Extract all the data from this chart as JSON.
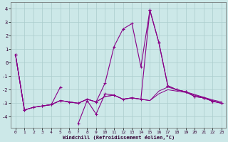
{
  "xlabel": "Windchill (Refroidissement éolien,°C)",
  "bg_color": "#cce8e8",
  "grid_color": "#aacccc",
  "line_color": "#880088",
  "x_values": [
    0,
    1,
    2,
    3,
    4,
    5,
    6,
    7,
    8,
    9,
    10,
    11,
    12,
    13,
    14,
    15,
    16,
    17,
    18,
    19,
    20,
    21,
    22,
    23
  ],
  "series_main": [
    0.6,
    -3.5,
    -3.3,
    -3.2,
    -3.1,
    -2.8,
    -2.9,
    -3.0,
    -2.7,
    -2.9,
    -1.5,
    1.2,
    2.5,
    2.9,
    -0.3,
    3.9,
    1.5,
    -1.7,
    -2.0,
    -2.15,
    -2.5,
    -2.6,
    -2.85,
    -3.0
  ],
  "series_flat1": [
    0.6,
    -3.5,
    -3.3,
    -3.2,
    -3.1,
    -2.8,
    -2.9,
    -3.0,
    -2.7,
    -2.9,
    -2.5,
    -2.4,
    -2.7,
    -2.6,
    -2.7,
    -2.8,
    -2.1,
    -1.8,
    -2.0,
    -2.15,
    -2.35,
    -2.55,
    -2.75,
    -2.9
  ],
  "series_flat2": [
    0.6,
    -3.5,
    -3.3,
    -3.2,
    -3.1,
    -2.8,
    -2.9,
    -3.0,
    -2.7,
    -2.9,
    -2.5,
    -2.4,
    -2.7,
    -2.6,
    -2.7,
    -2.8,
    -2.3,
    -2.0,
    -2.1,
    -2.2,
    -2.4,
    -2.6,
    -2.8,
    -3.0
  ],
  "series_spiky": [
    0.6,
    -3.5,
    null,
    -3.2,
    -3.1,
    -1.8,
    null,
    -4.5,
    -2.8,
    -3.8,
    -2.3,
    -2.4,
    -2.7,
    -2.6,
    -2.7,
    3.9,
    1.5,
    -1.7,
    -2.0,
    -2.15,
    -2.5,
    -2.6,
    -2.85,
    -3.0
  ],
  "ylim": [
    -4.8,
    4.5
  ],
  "yticks": [
    -4,
    -3,
    -2,
    -1,
    0,
    1,
    2,
    3,
    4
  ],
  "xlim": [
    -0.5,
    23.5
  ]
}
